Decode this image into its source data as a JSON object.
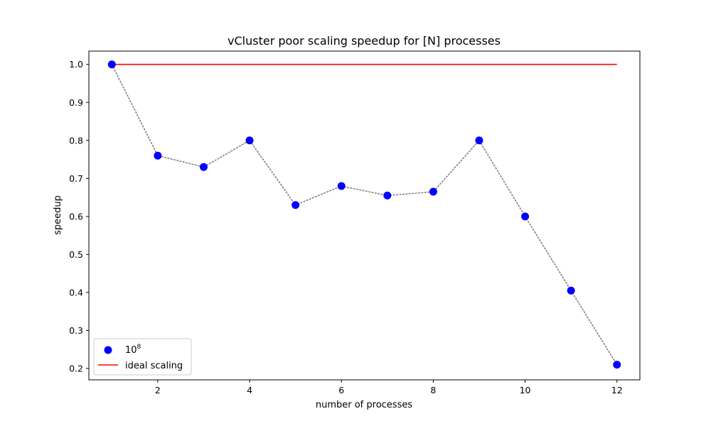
{
  "chart_data": {
    "type": "line",
    "title": "vCluster poor scaling speedup for [N] processes",
    "xlabel": "number of processes",
    "ylabel": "speedup",
    "xlim": [
      0.5,
      12.5
    ],
    "ylim": [
      0.17,
      1.035
    ],
    "xticks": [
      2,
      4,
      6,
      8,
      10,
      12
    ],
    "yticks": [
      0.2,
      0.3,
      0.4,
      0.5,
      0.6,
      0.7,
      0.8,
      0.9,
      1.0
    ],
    "xtick_labels": [
      "2",
      "4",
      "6",
      "8",
      "10",
      "12"
    ],
    "ytick_labels": [
      "0.2",
      "0.3",
      "0.4",
      "0.5",
      "0.6",
      "0.7",
      "0.8",
      "0.9",
      "1.0"
    ],
    "grid": false,
    "legend_position": "lower-left",
    "series": [
      {
        "name": "10",
        "name_superscript": "8",
        "kind": "scatter+dotted-line",
        "marker_color": "#0000ff",
        "line_color": "#808080",
        "x": [
          1,
          2,
          3,
          4,
          5,
          6,
          7,
          8,
          9,
          10,
          11,
          12
        ],
        "y": [
          1.0,
          0.76,
          0.73,
          0.8,
          0.63,
          0.68,
          0.655,
          0.665,
          0.8,
          0.6,
          0.405,
          0.21
        ]
      },
      {
        "name": "ideal scaling",
        "kind": "line",
        "line_color": "#ff0000",
        "x": [
          1,
          12
        ],
        "y": [
          1.0,
          1.0
        ]
      }
    ]
  }
}
